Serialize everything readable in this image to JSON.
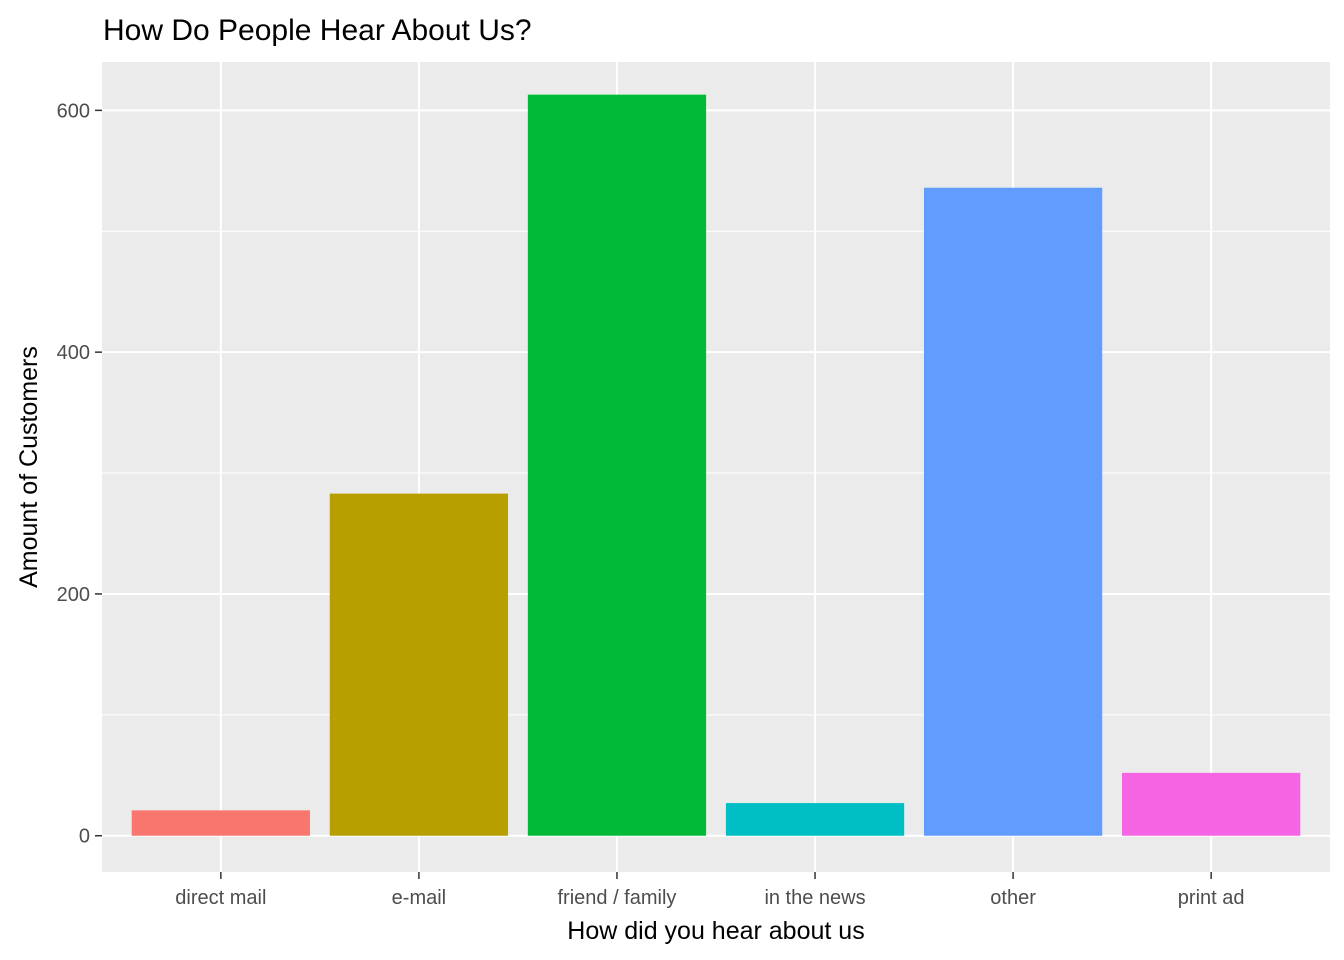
{
  "chart_data": {
    "type": "bar",
    "title": "How Do People Hear About Us?",
    "xlabel": "How did you hear about us",
    "ylabel": "Amount of Customers",
    "categories": [
      "direct mail",
      "e-mail",
      "friend / family",
      "in the news",
      "other",
      "print ad"
    ],
    "values": [
      21,
      283,
      613,
      27,
      536,
      52
    ],
    "colors": [
      "#F8766D",
      "#B79F00",
      "#00BA38",
      "#00BFC4",
      "#619CFF",
      "#F564E3"
    ],
    "ylim": [
      -30,
      640
    ],
    "y_ticks": [
      0,
      200,
      400,
      600
    ],
    "y_minor_ticks": [
      100,
      300,
      500
    ],
    "grid": true,
    "legend": "none",
    "panel_background": "#EBEBEB",
    "gridline_color": "#FFFFFF"
  }
}
